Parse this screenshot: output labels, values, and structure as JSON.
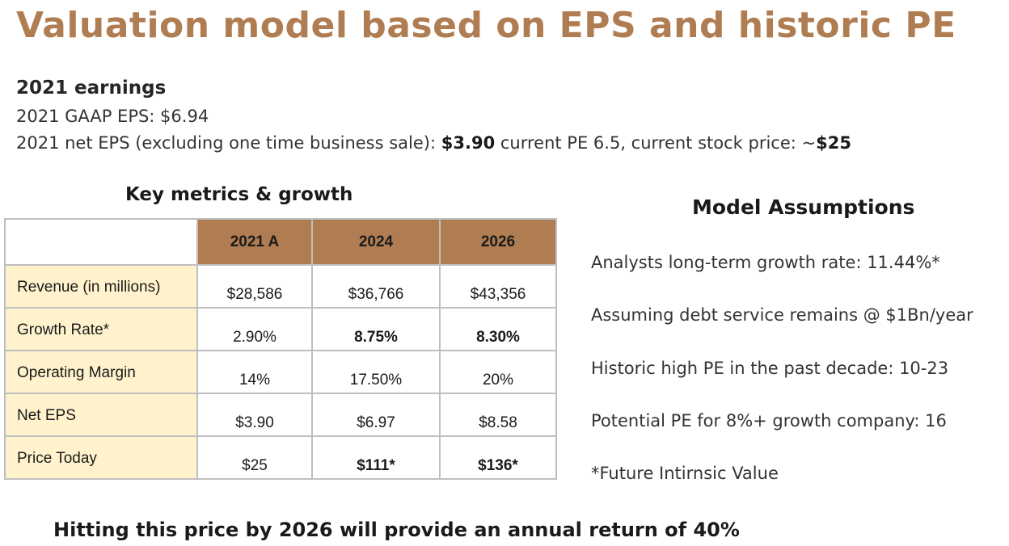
{
  "title": "Valuation model based on EPS and historic PE",
  "earnings": {
    "heading": "2021 earnings",
    "gaap_line": "2021 GAAP EPS: $6.94",
    "net_prefix": "2021 net EPS (excluding one time business sale): ",
    "net_eps_bold": "$3.90",
    "net_middle": " current PE 6.5, current stock price: ~",
    "price_bold": "$25"
  },
  "key_metrics": {
    "title": "Key metrics & growth",
    "columns": [
      "2021 A",
      "2024",
      "2026"
    ],
    "rows": [
      {
        "label": "Revenue (in millions)",
        "values": [
          "$28,586",
          "$36,766",
          "$43,356"
        ],
        "bold": [
          false,
          false,
          false
        ]
      },
      {
        "label": "Growth Rate*",
        "values": [
          "2.90%",
          "8.75%",
          "8.30%"
        ],
        "bold": [
          false,
          true,
          true
        ]
      },
      {
        "label": "Operating Margin",
        "values": [
          "14%",
          "17.50%",
          "20%"
        ],
        "bold": [
          false,
          false,
          false
        ]
      },
      {
        "label": "Net EPS",
        "values": [
          "$3.90",
          "$6.97",
          "$8.58"
        ],
        "bold": [
          false,
          false,
          false
        ]
      },
      {
        "label": "Price Today",
        "values": [
          "$25",
          "$111*",
          "$136*"
        ],
        "bold": [
          false,
          true,
          true
        ]
      }
    ]
  },
  "model_assumptions": {
    "title": "Model Assumptions",
    "items": [
      "Analysts long-term growth rate: 11.44%*",
      "Assuming debt service remains @ $1Bn/year",
      "Historic high PE in the past decade: 10-23",
      "Potential PE for 8%+  growth company: 16",
      "*Future Intirnsic Value"
    ]
  },
  "footer": "Hitting this price by 2026 will provide an annual return of 40%",
  "colors": {
    "title": "#B07D52",
    "header_fill": "#B07D52",
    "label_fill": "#FFF2CC",
    "grid": "#BFBFBF"
  }
}
